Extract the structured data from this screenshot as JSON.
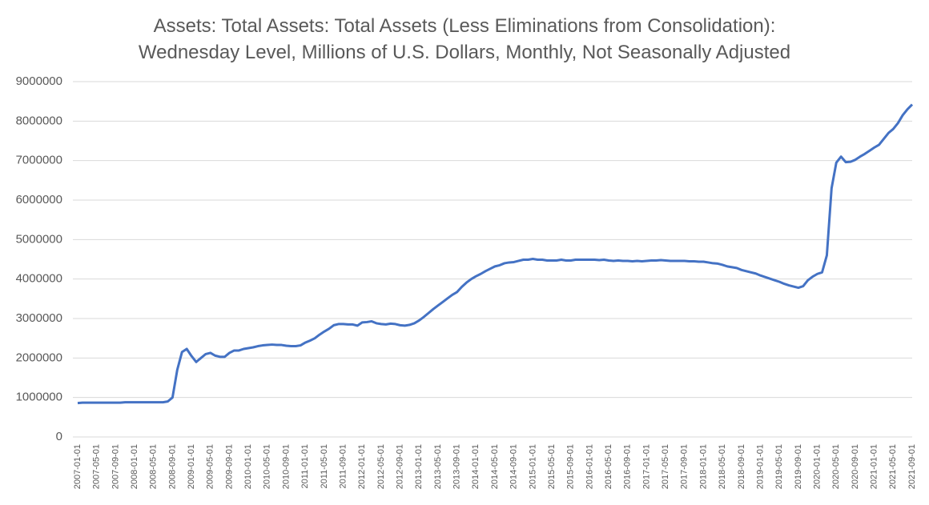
{
  "chart_data": {
    "type": "line",
    "title": [
      "Assets: Total Assets: Total Assets (Less Eliminations from Consolidation):",
      "Wednesday Level, Millions of U.S. Dollars, Monthly, Not Seasonally Adjusted"
    ],
    "categories": [
      "2007-01-01",
      null,
      null,
      null,
      "2007-05-01",
      null,
      null,
      null,
      "2007-09-01",
      null,
      null,
      null,
      "2008-01-01",
      null,
      null,
      null,
      "2008-05-01",
      null,
      null,
      null,
      "2008-09-01",
      null,
      null,
      null,
      "2009-01-01",
      null,
      null,
      null,
      "2009-05-01",
      null,
      null,
      null,
      "2009-09-01",
      null,
      null,
      null,
      "2010-01-01",
      null,
      null,
      null,
      "2010-05-01",
      null,
      null,
      null,
      "2010-09-01",
      null,
      null,
      null,
      "2011-01-01",
      null,
      null,
      null,
      "2011-05-01",
      null,
      null,
      null,
      "2011-09-01",
      null,
      null,
      null,
      "2012-01-01",
      null,
      null,
      null,
      "2012-05-01",
      null,
      null,
      null,
      "2012-09-01",
      null,
      null,
      null,
      "2013-01-01",
      null,
      null,
      null,
      "2013-05-01",
      null,
      null,
      null,
      "2013-09-01",
      null,
      null,
      null,
      "2014-01-01",
      null,
      null,
      null,
      "2014-05-01",
      null,
      null,
      null,
      "2014-09-01",
      null,
      null,
      null,
      "2015-01-01",
      null,
      null,
      null,
      "2015-05-01",
      null,
      null,
      null,
      "2015-09-01",
      null,
      null,
      null,
      "2016-01-01",
      null,
      null,
      null,
      "2016-05-01",
      null,
      null,
      null,
      "2016-09-01",
      null,
      null,
      null,
      "2017-01-01",
      null,
      null,
      null,
      "2017-05-01",
      null,
      null,
      null,
      "2017-09-01",
      null,
      null,
      null,
      "2018-01-01",
      null,
      null,
      null,
      "2018-05-01",
      null,
      null,
      null,
      "2018-09-01",
      null,
      null,
      null,
      "2019-01-01",
      null,
      null,
      null,
      "2019-05-01",
      null,
      null,
      null,
      "2019-09-01",
      null,
      null,
      null,
      "2020-01-01",
      null,
      null,
      null,
      "2020-05-01",
      null,
      null,
      null,
      "2020-09-01",
      null,
      null,
      null,
      "2021-01-01",
      null,
      null,
      null,
      "2021-05-01",
      null,
      null,
      null,
      "2021-09-01"
    ],
    "values": [
      860000,
      870000,
      870000,
      870000,
      870000,
      870000,
      870000,
      870000,
      870000,
      870000,
      880000,
      880000,
      880000,
      880000,
      880000,
      880000,
      880000,
      880000,
      880000,
      900000,
      1000000,
      1700000,
      2150000,
      2230000,
      2050000,
      1900000,
      2000000,
      2100000,
      2130000,
      2060000,
      2030000,
      2030000,
      2130000,
      2190000,
      2190000,
      2230000,
      2250000,
      2270000,
      2300000,
      2320000,
      2330000,
      2340000,
      2330000,
      2330000,
      2310000,
      2300000,
      2300000,
      2320000,
      2390000,
      2440000,
      2500000,
      2590000,
      2670000,
      2740000,
      2830000,
      2860000,
      2860000,
      2850000,
      2850000,
      2820000,
      2900000,
      2910000,
      2930000,
      2880000,
      2860000,
      2850000,
      2870000,
      2860000,
      2830000,
      2820000,
      2840000,
      2880000,
      2950000,
      3040000,
      3140000,
      3240000,
      3330000,
      3420000,
      3510000,
      3600000,
      3670000,
      3800000,
      3910000,
      4000000,
      4070000,
      4130000,
      4200000,
      4260000,
      4320000,
      4350000,
      4400000,
      4420000,
      4430000,
      4460000,
      4490000,
      4490000,
      4510000,
      4490000,
      4490000,
      4470000,
      4470000,
      4470000,
      4490000,
      4470000,
      4470000,
      4490000,
      4490000,
      4490000,
      4490000,
      4490000,
      4480000,
      4490000,
      4470000,
      4460000,
      4470000,
      4460000,
      4460000,
      4450000,
      4460000,
      4450000,
      4460000,
      4470000,
      4470000,
      4480000,
      4470000,
      4460000,
      4460000,
      4460000,
      4460000,
      4450000,
      4450000,
      4440000,
      4440000,
      4420000,
      4400000,
      4390000,
      4360000,
      4320000,
      4300000,
      4280000,
      4230000,
      4200000,
      4170000,
      4140000,
      4090000,
      4050000,
      4010000,
      3970000,
      3930000,
      3880000,
      3840000,
      3810000,
      3780000,
      3820000,
      3970000,
      4060000,
      4130000,
      4170000,
      4600000,
      6300000,
      6950000,
      7100000,
      6960000,
      6970000,
      7020000,
      7100000,
      7170000,
      7250000,
      7330000,
      7400000,
      7550000,
      7700000,
      7800000,
      7950000,
      8150000,
      8300000,
      8420000
    ],
    "color": "#4472c4",
    "ylim": [
      0,
      9000000
    ],
    "yticks": [
      0,
      1000000,
      2000000,
      3000000,
      4000000,
      5000000,
      6000000,
      7000000,
      8000000,
      9000000
    ],
    "grid": true
  }
}
